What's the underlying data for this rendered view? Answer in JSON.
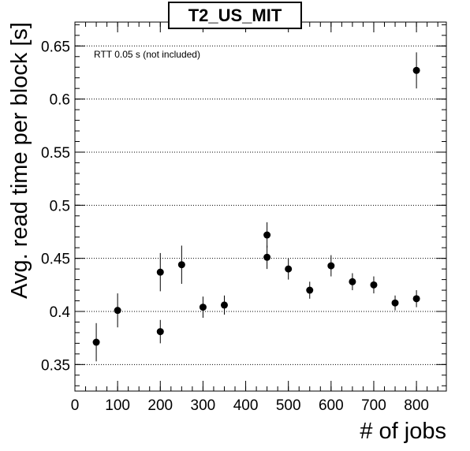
{
  "chart_data": {
    "type": "scatter",
    "title": "T2_US_MIT",
    "xlabel": "# of jobs",
    "ylabel": "Avg. read time per block [s]",
    "annotation": "RTT 0.05 s (not included)",
    "xlim": [
      0,
      870
    ],
    "ylim": [
      0.325,
      0.6725
    ],
    "xticks": [
      0,
      100,
      200,
      300,
      400,
      500,
      600,
      700,
      800
    ],
    "xtick_labels": [
      "0",
      "100",
      "200",
      "300",
      "400",
      "500",
      "600",
      "700",
      "800"
    ],
    "yticks": [
      0.35,
      0.4,
      0.45,
      0.5,
      0.55,
      0.6,
      0.65
    ],
    "ytick_labels": [
      "0.35",
      "0.4",
      "0.45",
      "0.5",
      "0.55",
      "0.6",
      "0.65"
    ],
    "grid": "horizontal dotted",
    "error_bars": true,
    "colors": {
      "marker": "#000000",
      "frame": "#000000",
      "grid": "#000000"
    },
    "points": [
      {
        "x": 50,
        "y": 0.371,
        "err": 0.018
      },
      {
        "x": 100,
        "y": 0.401,
        "err": 0.016
      },
      {
        "x": 200,
        "y": 0.381,
        "err": 0.011
      },
      {
        "x": 200,
        "y": 0.437,
        "err": 0.018
      },
      {
        "x": 250,
        "y": 0.444,
        "err": 0.018
      },
      {
        "x": 300,
        "y": 0.404,
        "err": 0.01
      },
      {
        "x": 350,
        "y": 0.406,
        "err": 0.009
      },
      {
        "x": 450,
        "y": 0.451,
        "err": 0.011
      },
      {
        "x": 450,
        "y": 0.472,
        "err": 0.012
      },
      {
        "x": 500,
        "y": 0.44,
        "err": 0.01
      },
      {
        "x": 550,
        "y": 0.42,
        "err": 0.008
      },
      {
        "x": 600,
        "y": 0.443,
        "err": 0.01
      },
      {
        "x": 650,
        "y": 0.428,
        "err": 0.008
      },
      {
        "x": 700,
        "y": 0.425,
        "err": 0.008
      },
      {
        "x": 750,
        "y": 0.408,
        "err": 0.007
      },
      {
        "x": 800,
        "y": 0.412,
        "err": 0.008
      },
      {
        "x": 800,
        "y": 0.627,
        "err": 0.017
      }
    ]
  }
}
